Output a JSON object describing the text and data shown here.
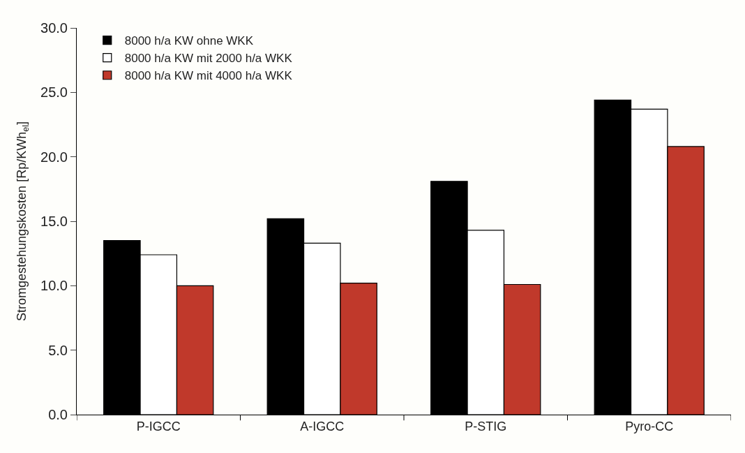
{
  "chart_data": {
    "type": "bar",
    "ylabel": "Stromgestehungskosten [Rp/KWh$_{el}$]",
    "categories": [
      "P-IGCC",
      "A-IGCC",
      "P-STIG",
      "Pyro-CC"
    ],
    "series": [
      {
        "name": "8000 h/a KW ohne WKK",
        "color": "#000000",
        "values": [
          13.5,
          15.2,
          18.1,
          24.4
        ]
      },
      {
        "name": "8000 h/a KW mit 2000 h/a WKK",
        "color": "#ffffff",
        "values": [
          12.4,
          13.3,
          14.3,
          23.7
        ]
      },
      {
        "name": "8000 h/a KW mit 4000 h/a WKK",
        "color": "#c0392b",
        "values": [
          10.0,
          10.2,
          10.1,
          20.8
        ]
      }
    ],
    "ylim": [
      0,
      30
    ],
    "yticks": [
      {
        "value": 0,
        "label": "0.0"
      },
      {
        "value": 5,
        "label": "5.0"
      },
      {
        "value": 10,
        "label": "10.0"
      },
      {
        "value": 15,
        "label": "15.0"
      },
      {
        "value": 20,
        "label": "20.0"
      },
      {
        "value": 25,
        "label": "25.0"
      },
      {
        "value": 30,
        "label": "30.0"
      }
    ],
    "legend": "top left"
  }
}
